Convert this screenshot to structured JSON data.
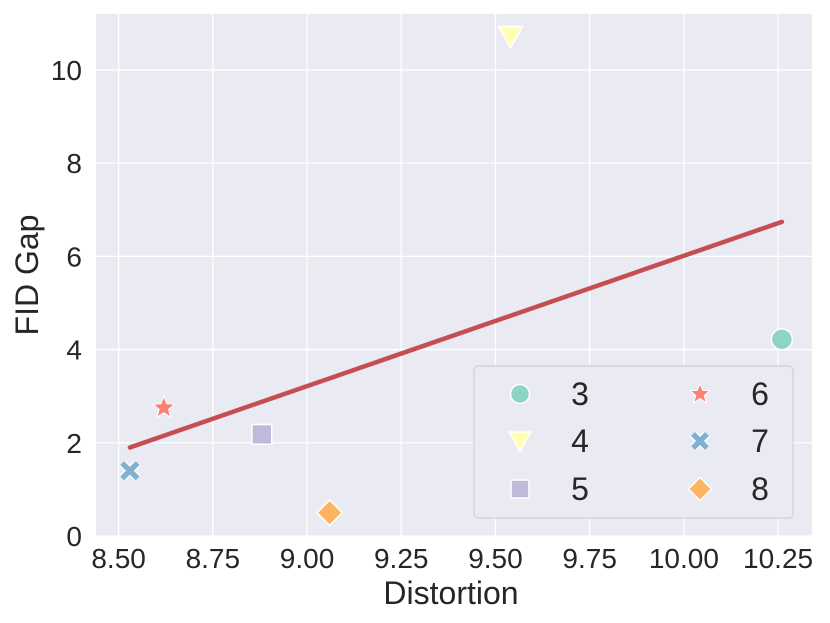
{
  "chart_data": {
    "type": "scatter",
    "xlabel": "Distortion",
    "ylabel": "FID Gap",
    "xlim": [
      8.44,
      10.34
    ],
    "ylim": [
      0,
      11.2
    ],
    "xticks": [
      8.5,
      8.75,
      9.0,
      9.25,
      9.5,
      9.75,
      10.0,
      10.25
    ],
    "xtick_labels": [
      "8.50",
      "8.75",
      "9.00",
      "9.25",
      "9.50",
      "9.75",
      "10.00",
      "10.25"
    ],
    "yticks": [
      0,
      2,
      4,
      6,
      8,
      10
    ],
    "ytick_labels": [
      "0",
      "2",
      "4",
      "6",
      "8",
      "10"
    ],
    "grid": true,
    "legend_position": "bottom-right",
    "series": [
      {
        "name": "3",
        "marker": "circle",
        "color": "#8dd3c7",
        "x": 10.26,
        "y": 4.22
      },
      {
        "name": "4",
        "marker": "triangle-down",
        "color": "#ffffb3",
        "x": 9.54,
        "y": 10.72
      },
      {
        "name": "5",
        "marker": "square",
        "color": "#bebada",
        "x": 8.88,
        "y": 2.18
      },
      {
        "name": "6",
        "marker": "star",
        "color": "#fb8072",
        "x": 8.62,
        "y": 2.75
      },
      {
        "name": "7",
        "marker": "x",
        "color": "#80b1d3",
        "x": 8.53,
        "y": 1.4
      },
      {
        "name": "8",
        "marker": "diamond",
        "color": "#fdb462",
        "x": 9.06,
        "y": 0.5
      }
    ],
    "trendline": {
      "color": "#c44e52",
      "points": [
        [
          8.53,
          1.9
        ],
        [
          10.26,
          6.74
        ]
      ]
    }
  }
}
